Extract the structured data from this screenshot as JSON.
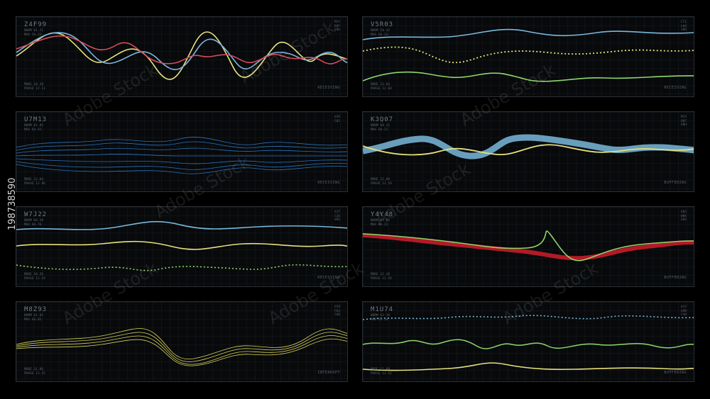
{
  "panels": [
    {
      "id": "Z4F99",
      "info": [
        "NORM 61.21",
        "MAX 54.23"
      ],
      "side": [
        "M1Y",
        "D8F",
        "V8H"
      ],
      "mode": [
        "MODE 10.38",
        "PHASE 12.11"
      ],
      "status": "RECEIVING"
    },
    {
      "id": "V5R03",
      "info": [
        "NORM 58.42",
        "MAX 64.23"
      ],
      "side": [
        "C71",
        "L84",
        "J08"
      ],
      "mode": [
        "MODE 13.04",
        "PHASE 12.68"
      ],
      "status": "RECEIVING"
    },
    {
      "id": "U7M13",
      "info": [
        "NORM 61.85",
        "MAX 64.41"
      ],
      "side": [
        "U39",
        "C01"
      ],
      "mode": [
        "MODE 12.64",
        "PHASE 12.96"
      ],
      "status": "RECEIVING"
    },
    {
      "id": "K3Q07",
      "info": [
        "NORM 68.31",
        "MAX 64.21"
      ],
      "side": [
        "M1Y",
        "D8F",
        "V8H"
      ],
      "mode": [
        "MODE 12.08",
        "PHASE 12.59"
      ],
      "status": "BUFFERING"
    },
    {
      "id": "W7J22",
      "info": [
        "NORM 66.58",
        "MAX 64.76"
      ],
      "side": [
        "X1Y",
        "C26",
        "V8S"
      ],
      "mode": [
        "MODE 10.26",
        "PHASE 12.54"
      ],
      "status": "RECEIVING"
    },
    {
      "id": "Y4Y48",
      "info": [
        "NORM 63.02",
        "MAX 64.21"
      ],
      "side": [
        "U83",
        "W6K",
        "S0S"
      ],
      "mode": [
        "MODE 11.18",
        "PHASE 12.56"
      ],
      "status": "BUFFERING"
    },
    {
      "id": "M8Z93",
      "info": [
        "NORM 61.01",
        "MAX 64.02"
      ],
      "side": [
        "S59",
        "F83",
        "C68"
      ],
      "mode": [
        "MODE 11.86",
        "PHASE 12.25"
      ],
      "status": "INTERRUPT"
    },
    {
      "id": "M1U74",
      "info": [
        "NORM 63.10",
        "MAX 64.16"
      ],
      "side": [
        "A1Y",
        "G9B",
        "C40"
      ],
      "mode": [
        "MODE 12.08",
        "PHASE 12.42"
      ],
      "status": "BUFFERING"
    }
  ],
  "stock_id": "198738590",
  "watermark": "Adobe Stock",
  "colors": {
    "blue": "#79b8dc",
    "yellow": "#e6e07a",
    "green": "#8ed66a",
    "red": "#d94c5c",
    "deepblue": "#2f7fd0",
    "olive": "#d9d25a",
    "crimson": "#c81c2a"
  }
}
